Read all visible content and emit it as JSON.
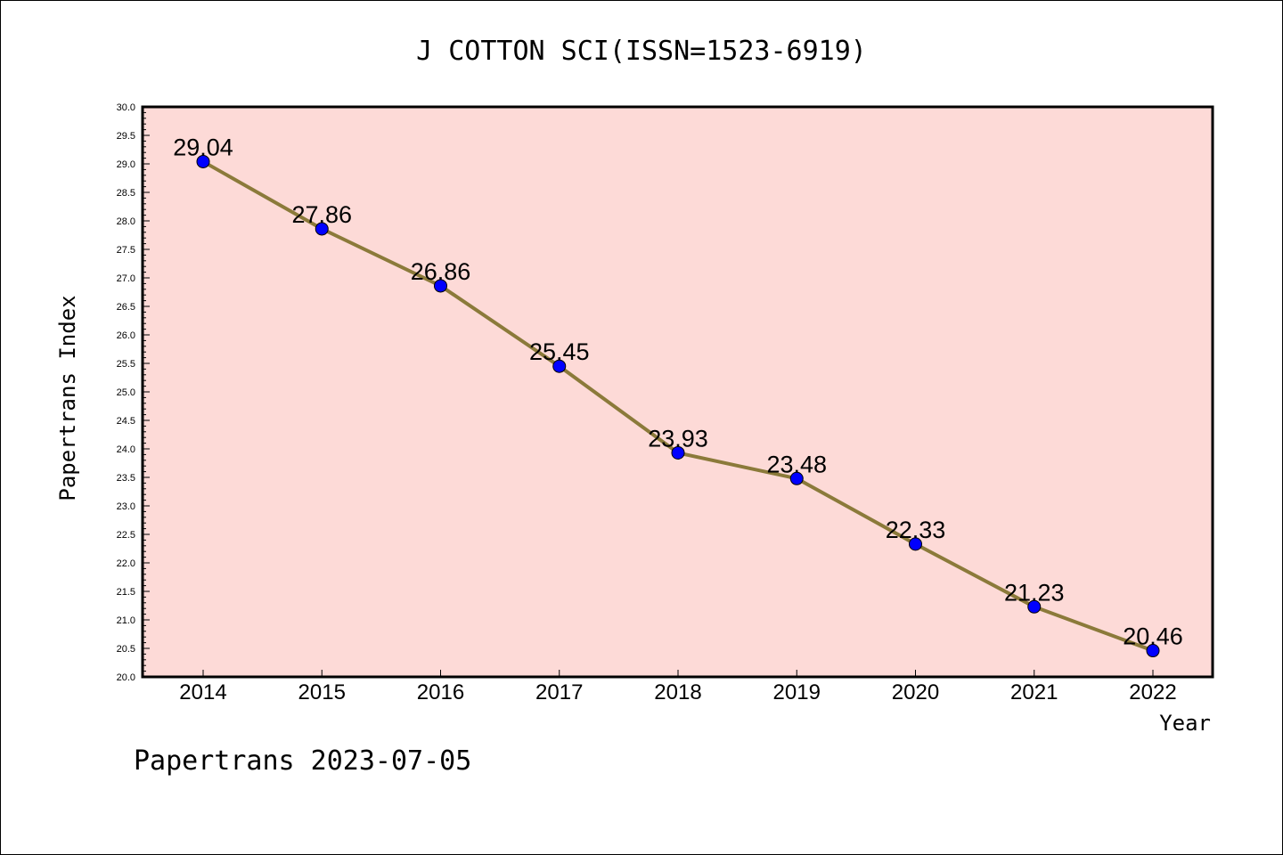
{
  "chart_data": {
    "type": "line",
    "title": "J COTTON SCI(ISSN=1523-6919)",
    "xlabel": "Year",
    "ylabel": "Papertrans Index",
    "categories": [
      "2014",
      "2015",
      "2016",
      "2017",
      "2018",
      "2019",
      "2020",
      "2021",
      "2022"
    ],
    "series": [
      {
        "values": [
          29.04,
          27.86,
          26.86,
          25.45,
          23.93,
          23.48,
          22.33,
          21.23,
          20.46
        ],
        "data_labels": [
          "29.04",
          "27.86",
          "26.86",
          "25.45",
          "23.93",
          "23.48",
          "22.33",
          "21.23",
          "20.46"
        ]
      }
    ],
    "ylim": [
      20.0,
      30.0
    ],
    "y_ticks": [
      "20.0",
      "20.5",
      "21.0",
      "21.5",
      "22.0",
      "22.5",
      "23.0",
      "23.5",
      "24.0",
      "24.5",
      "25.0",
      "25.5",
      "26.0",
      "26.5",
      "27.0",
      "27.5",
      "28.0",
      "28.5",
      "29.0",
      "29.5",
      "30.0"
    ],
    "grid": false,
    "footer": "Papertrans 2023-07-05",
    "colors": {
      "plot_background": "#fddad7",
      "line": "#8b7a3a",
      "marker": "#0000ff",
      "axis": "#000000"
    }
  }
}
